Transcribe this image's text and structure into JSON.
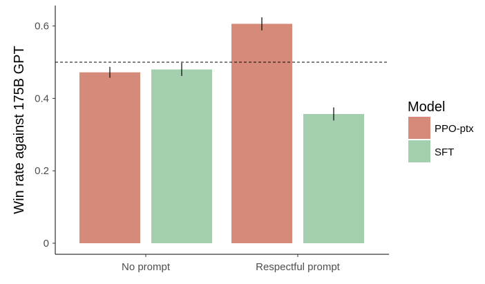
{
  "chart_data": {
    "type": "bar",
    "title": "",
    "xlabel": "",
    "ylabel": "Win rate against 175B GPT",
    "ylim": [
      0,
      0.66
    ],
    "yticks": [
      0,
      0.2,
      0.4,
      0.6
    ],
    "ytick_labels": [
      "0",
      "0.2",
      "0.4",
      "0.6"
    ],
    "categories": [
      "No prompt",
      "Respectful prompt"
    ],
    "series": [
      {
        "name": "PPO-ptx",
        "color": "#d68a7a",
        "values": [
          0.472,
          0.606
        ],
        "error_low": [
          0.457,
          0.588
        ],
        "error_high": [
          0.487,
          0.624
        ]
      },
      {
        "name": "SFT",
        "color": "#a4cfae",
        "values": [
          0.48,
          0.357
        ],
        "error_low": [
          0.462,
          0.339
        ],
        "error_high": [
          0.498,
          0.375
        ]
      }
    ],
    "reference_line": 0.5,
    "legend": {
      "title": "Model",
      "position": "right"
    },
    "grid": false
  }
}
